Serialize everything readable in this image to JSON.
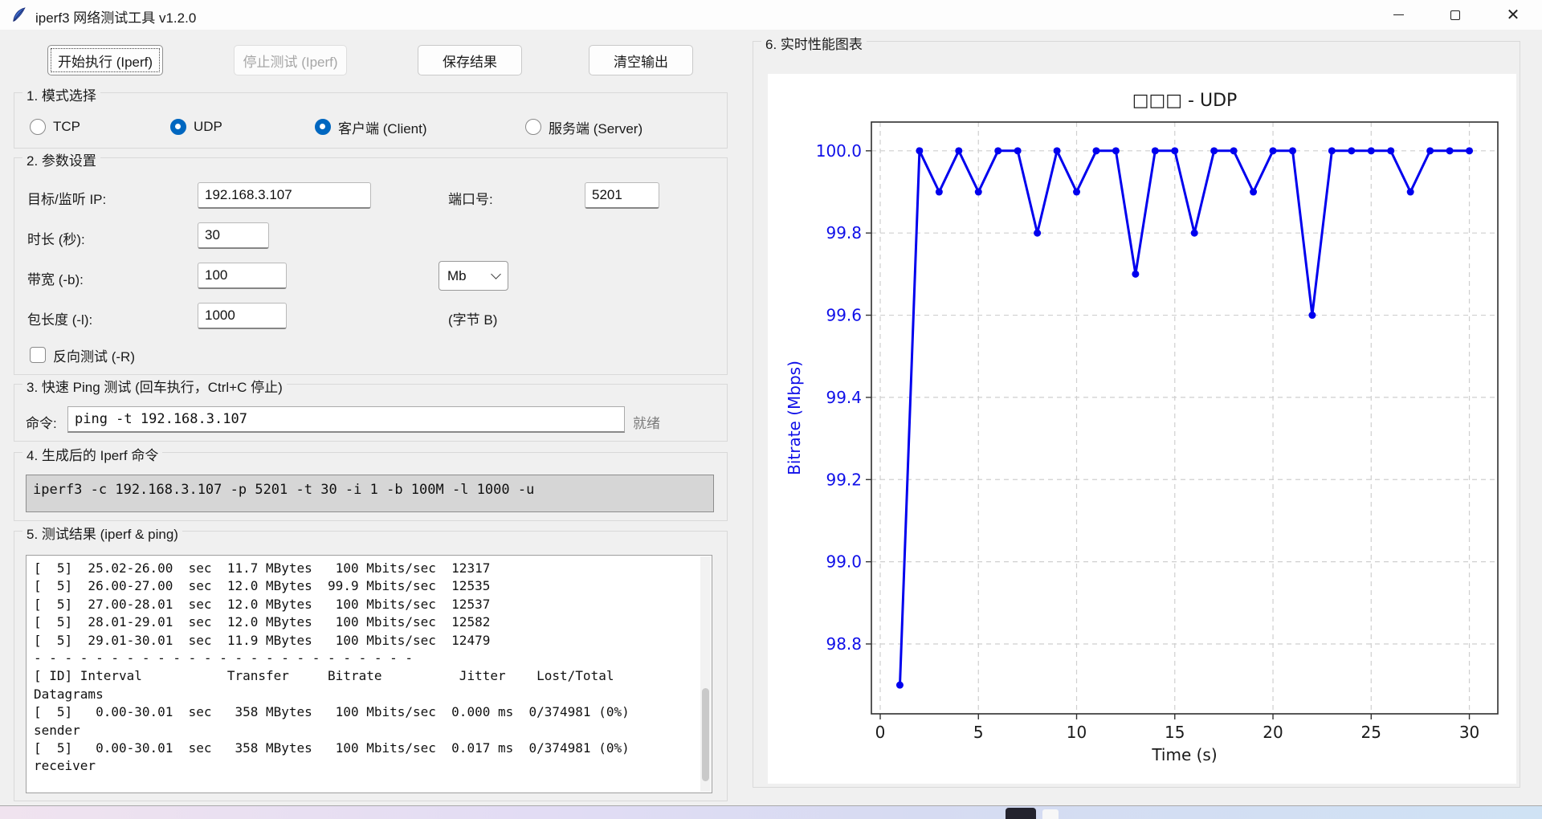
{
  "window": {
    "title": "iperf3 网络测试工具 v1.2.0"
  },
  "toolbar": {
    "start_label": "开始执行 (Iperf)",
    "stop_label": "停止测试 (Iperf)",
    "save_label": "保存结果",
    "clear_label": "清空输出"
  },
  "mode_section": {
    "title": "1. 模式选择",
    "options": [
      {
        "label": "TCP",
        "selected": false
      },
      {
        "label": "UDP",
        "selected": true
      },
      {
        "label": "客户端 (Client)",
        "selected": true
      },
      {
        "label": "服务端 (Server)",
        "selected": false
      }
    ]
  },
  "params_section": {
    "title": "2. 参数设置",
    "ip_label": "目标/监听 IP:",
    "ip_value": "192.168.3.107",
    "port_label": "端口号:",
    "port_value": "5201",
    "duration_label": "时长 (秒):",
    "duration_value": "30",
    "bandwidth_label": "带宽 (-b):",
    "bandwidth_value": "100",
    "bandwidth_unit": "Mb",
    "length_label": "包长度 (-l):",
    "length_value": "1000",
    "length_unit_hint": "(字节 B)",
    "reverse_label": "反向测试 (-R)",
    "reverse_checked": false
  },
  "ping_section": {
    "title": "3. 快速 Ping 测试 (回车执行，Ctrl+C 停止)",
    "cmd_label": "命令:",
    "cmd_value": "ping -t 192.168.3.107",
    "status": "就绪"
  },
  "command_section": {
    "title": "4. 生成后的 Iperf 命令",
    "command": "iperf3 -c 192.168.3.107 -p 5201 -t 30 -i 1 -b 100M -l 1000 -u"
  },
  "results_section": {
    "title": "5. 测试结果 (iperf & ping)",
    "lines": [
      "[  5]  25.02-26.00  sec  11.7 MBytes   100 Mbits/sec  12317",
      "[  5]  26.00-27.00  sec  12.0 MBytes  99.9 Mbits/sec  12535",
      "[  5]  27.00-28.01  sec  12.0 MBytes   100 Mbits/sec  12537",
      "[  5]  28.01-29.01  sec  12.0 MBytes   100 Mbits/sec  12582",
      "[  5]  29.01-30.01  sec  11.9 MBytes   100 Mbits/sec  12479",
      "- - - - - - - - - - - - - - - - - - - - - - - - -",
      "[ ID] Interval           Transfer     Bitrate          Jitter    Lost/Total",
      "Datagrams",
      "[  5]   0.00-30.01  sec   358 MBytes   100 Mbits/sec  0.000 ms  0/374981 (0%)",
      "sender",
      "[  5]   0.00-30.01  sec   358 MBytes   100 Mbits/sec  0.017 ms  0/374981 (0%)",
      "receiver"
    ]
  },
  "chart_section": {
    "title": "6. 实时性能图表"
  },
  "chart_data": {
    "type": "line",
    "title": "□□□ - UDP",
    "xlabel": "Time (s)",
    "ylabel": "Bitrate (Mbps)",
    "x": [
      1,
      2,
      3,
      4,
      5,
      6,
      7,
      8,
      9,
      10,
      11,
      12,
      13,
      14,
      15,
      16,
      17,
      18,
      19,
      20,
      21,
      22,
      23,
      24,
      25,
      26,
      27,
      28,
      29,
      30
    ],
    "values": [
      98.7,
      100,
      99.9,
      100,
      99.9,
      100,
      100,
      99.8,
      100,
      99.9,
      100,
      100,
      99.7,
      100,
      100,
      99.8,
      100,
      100,
      99.9,
      100,
      100,
      99.6,
      100,
      100,
      100,
      100,
      99.9,
      100,
      100,
      100
    ],
    "xticks": [
      0,
      5,
      10,
      15,
      20,
      25,
      30
    ],
    "yticks": [
      98.8,
      99.0,
      99.2,
      99.4,
      99.6,
      99.8,
      100.0
    ],
    "xlim": [
      -0.45,
      31.45
    ],
    "ylim": [
      98.63,
      100.07
    ],
    "grid": true,
    "marker": "o",
    "line_color": "#0000ee",
    "axis_label_color": "#0f0fe8",
    "y_tick_color": "#0f0fe8",
    "x_tick_color": "#1a1a1a",
    "legend_position": "none"
  }
}
